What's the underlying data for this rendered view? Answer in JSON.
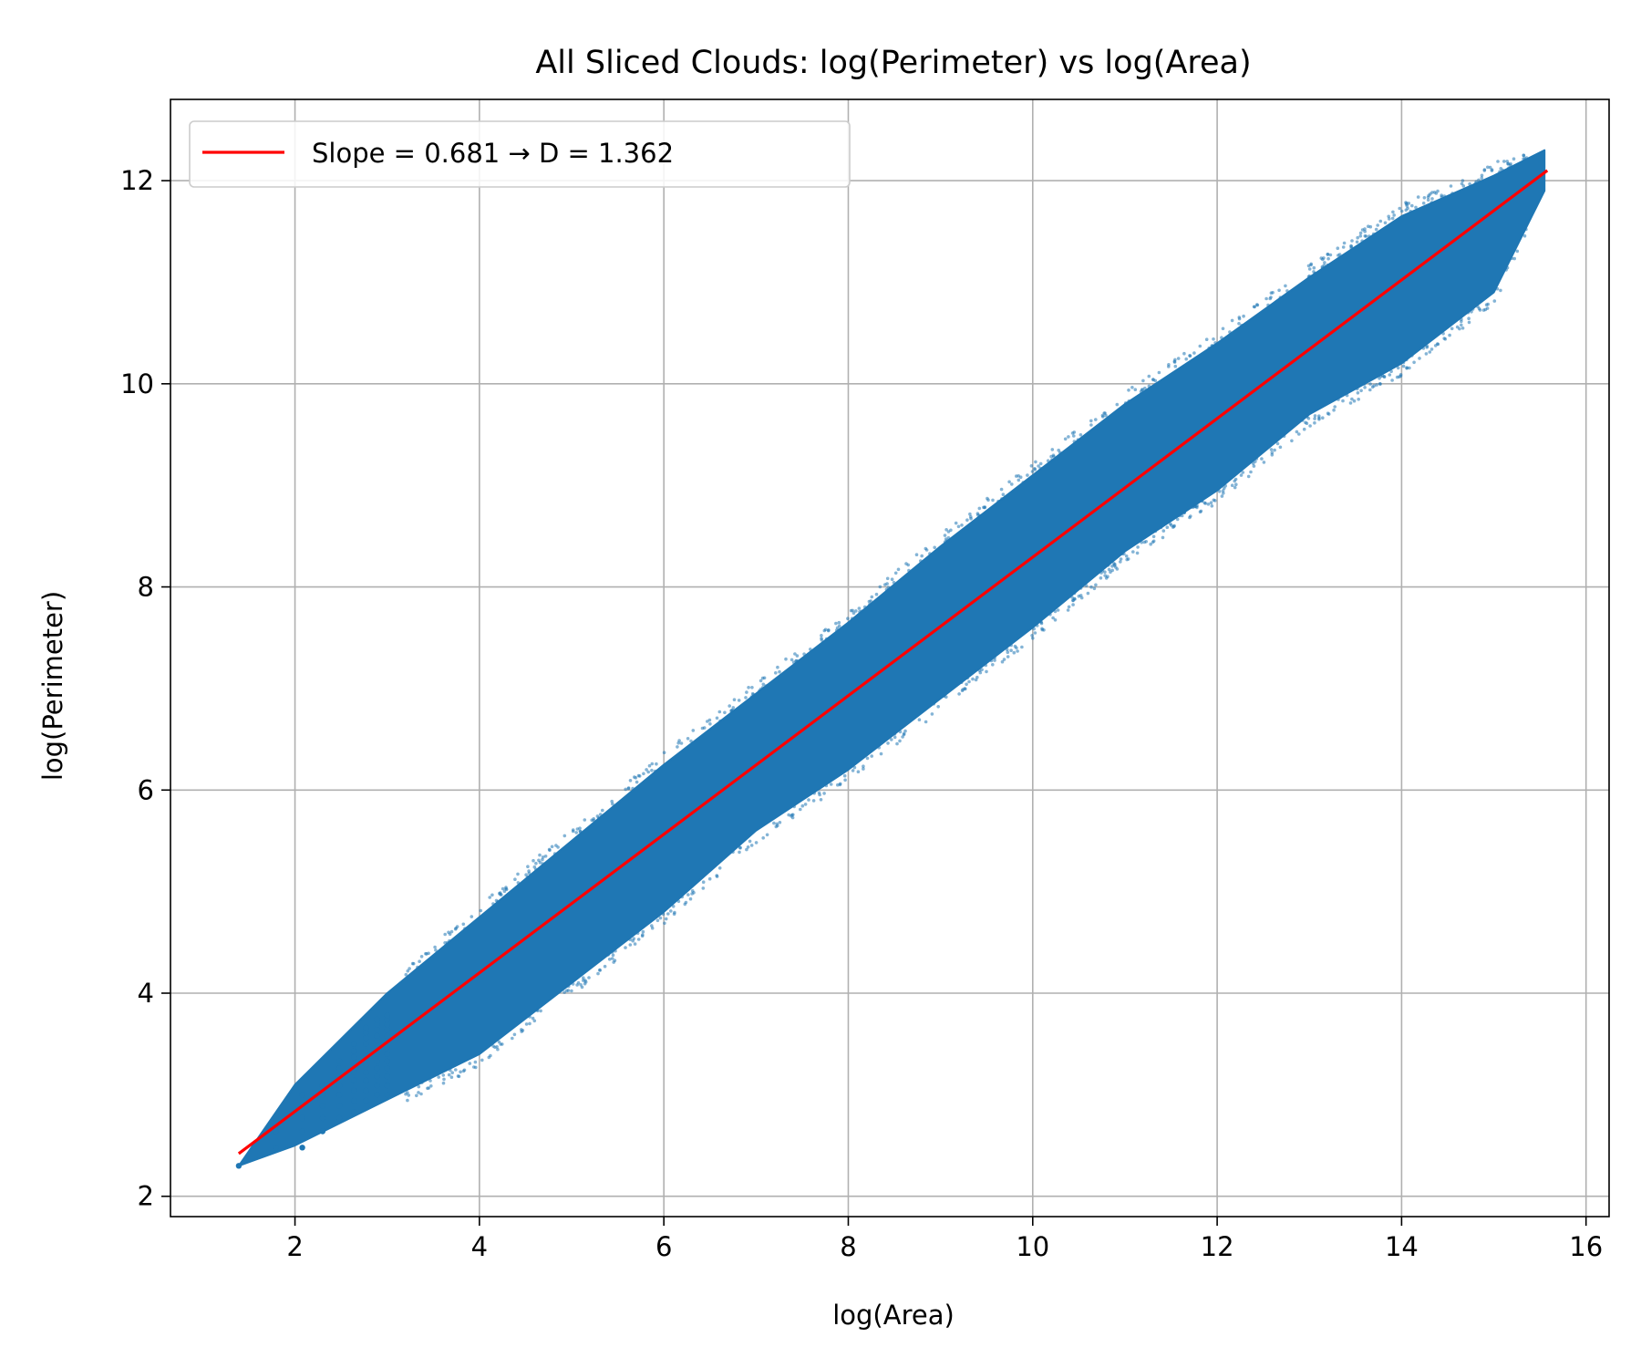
{
  "chart_data": {
    "type": "scatter",
    "title": "All Sliced Clouds: log(Perimeter) vs log(Area)",
    "xlabel": "log(Area)",
    "ylabel": "log(Perimeter)",
    "xlim": [
      0.65,
      16.25
    ],
    "ylim": [
      1.8,
      12.8
    ],
    "xticks": [
      "2",
      "4",
      "6",
      "8",
      "10",
      "12",
      "14",
      "16"
    ],
    "yticks": [
      "2",
      "4",
      "6",
      "8",
      "10",
      "12"
    ],
    "grid": true,
    "legend_position": "top-left",
    "colors": {
      "points": "#1f77b4",
      "fit": "#ff0000",
      "grid": "#b0b0b0"
    },
    "series": [
      {
        "type": "scatter",
        "description_shape": "dense elongated cloud of points following a linear trend",
        "envelope": {
          "x": [
            1.39,
            2.0,
            3.0,
            4.0,
            5.0,
            6.0,
            7.0,
            8.0,
            9.0,
            10.0,
            11.0,
            12.0,
            13.0,
            14.0,
            15.0,
            15.55
          ],
          "upper": [
            2.3,
            3.1,
            4.0,
            4.75,
            5.5,
            6.25,
            6.95,
            7.65,
            8.4,
            9.1,
            9.8,
            10.4,
            11.05,
            11.65,
            12.05,
            12.3
          ],
          "lower": [
            2.3,
            2.5,
            2.95,
            3.4,
            4.1,
            4.8,
            5.6,
            6.2,
            6.9,
            7.6,
            8.35,
            8.95,
            9.7,
            10.2,
            10.9,
            11.9
          ]
        },
        "discrete_columns": [
          {
            "x": 1.39,
            "y": [
              2.3
            ]
          },
          {
            "x": 1.79,
            "y": [
              2.48,
              2.64,
              2.77
            ]
          },
          {
            "x": 2.08,
            "y": [
              2.48,
              2.64,
              2.77,
              2.89,
              3.0
            ]
          },
          {
            "x": 2.3,
            "y": [
              2.64,
              2.77,
              2.89,
              3.0,
              3.09
            ]
          },
          {
            "x": 2.48,
            "y": [
              2.77,
              2.89,
              3.0,
              3.09,
              3.18,
              3.26,
              3.33
            ]
          },
          {
            "x": 2.64,
            "y": [
              2.83,
              2.94,
              3.04,
              3.14,
              3.22,
              3.3,
              3.37,
              3.43,
              3.5
            ]
          },
          {
            "x": 2.77,
            "y": [
              2.94,
              3.04,
              3.14,
              3.22,
              3.3,
              3.37,
              3.43,
              3.5,
              3.56,
              3.61,
              3.66
            ]
          },
          {
            "x": 2.89,
            "y": [
              3.0,
              3.09,
              3.18,
              3.26,
              3.33,
              3.4,
              3.47,
              3.53,
              3.58,
              3.64,
              3.69,
              3.74
            ]
          },
          {
            "x": 3.0,
            "y": [
              3.0,
              3.09,
              3.18,
              3.26,
              3.33,
              3.4,
              3.47,
              3.53,
              3.58,
              3.64,
              3.69,
              3.74,
              3.78
            ]
          }
        ]
      }
    ],
    "fit_line": {
      "label": "Slope = 0.681 → D = 1.362",
      "slope": 0.681,
      "x": [
        1.39,
        15.58
      ],
      "y": [
        2.42,
        12.1
      ]
    }
  }
}
